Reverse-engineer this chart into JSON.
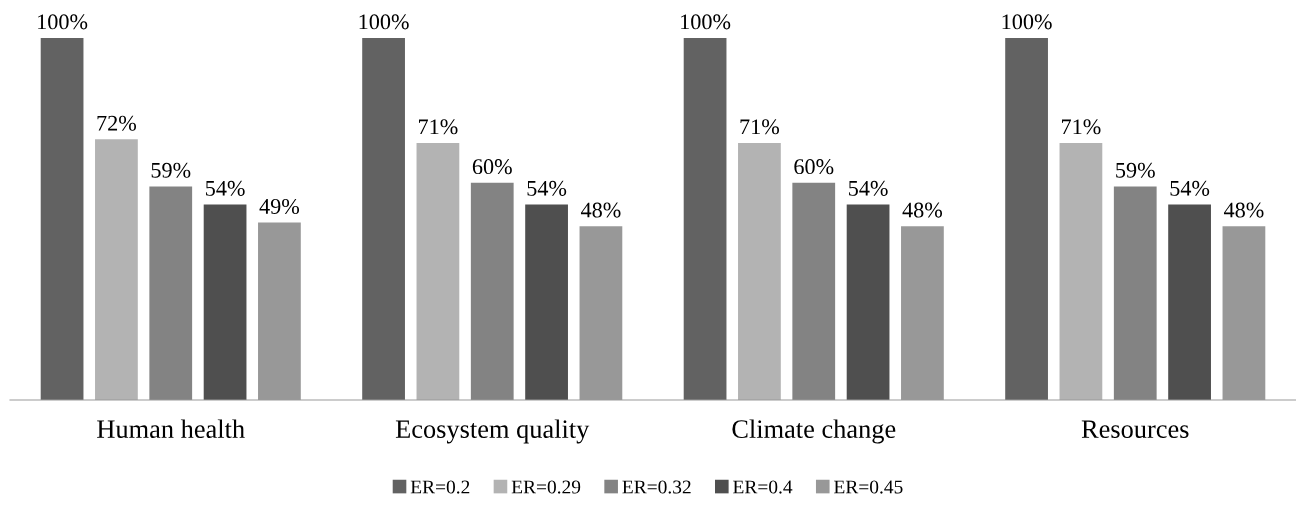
{
  "chart_data": {
    "type": "bar",
    "categories": [
      "Human health",
      "Ecosystem quality",
      "Climate change",
      "Resources"
    ],
    "series": [
      {
        "name": "ER=0.2",
        "color": "#626262",
        "values": [
          100,
          100,
          100,
          100
        ],
        "value_labels": [
          "100%",
          "100%",
          "100%",
          "100%"
        ]
      },
      {
        "name": "ER=0.29",
        "color": "#b3b3b3",
        "values": [
          72,
          71,
          71,
          71
        ],
        "value_labels": [
          "72%",
          "71%",
          "71%",
          "71%"
        ]
      },
      {
        "name": "ER=0.32",
        "color": "#838383",
        "values": [
          59,
          60,
          60,
          59
        ],
        "value_labels": [
          "59%",
          "60%",
          "60%",
          "59%"
        ]
      },
      {
        "name": "ER=0.4",
        "color": "#4f4f4f",
        "values": [
          54,
          54,
          54,
          54
        ],
        "value_labels": [
          "54%",
          "54%",
          "54%",
          "54%"
        ]
      },
      {
        "name": "ER=0.45",
        "color": "#989898",
        "values": [
          49,
          48,
          48,
          48
        ],
        "value_labels": [
          "49%",
          "48%",
          "48%",
          "48%"
        ]
      }
    ],
    "legend": "bottom",
    "grid": false
  }
}
